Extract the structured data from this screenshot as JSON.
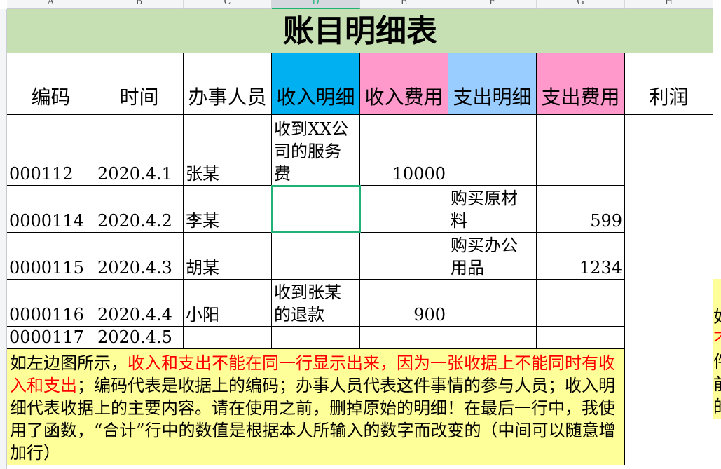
{
  "columns": [
    "A",
    "B",
    "C",
    "D",
    "E",
    "F",
    "G",
    "H"
  ],
  "selected_column": "D",
  "selected_cell": "D4",
  "title": "账目明细表",
  "headers": [
    {
      "label": "编码",
      "bg": "#ffffff"
    },
    {
      "label": "时间",
      "bg": "#ffffff"
    },
    {
      "label": "办事人员",
      "bg": "#ffffff"
    },
    {
      "label": "收入明细",
      "bg": "#00b0f0"
    },
    {
      "label": "收入费用",
      "bg": "#ff99cc"
    },
    {
      "label": "支出明细",
      "bg": "#99ccff"
    },
    {
      "label": "支出费用",
      "bg": "#ff99cc"
    },
    {
      "label": "利润",
      "bg": "#ffffff"
    }
  ],
  "rows": [
    [
      "000112",
      "2020.4.1",
      "张某",
      "收到XX公司的服务费",
      "10000",
      "",
      ""
    ],
    [
      "0000114",
      "2020.4.2",
      "李某",
      "",
      "",
      "购买原材料",
      "599"
    ],
    [
      "0000115",
      "2020.4.3",
      "胡某",
      "",
      "",
      "购买办公用品",
      "1234"
    ],
    [
      "0000116",
      "2020.4.4",
      "小阳",
      "收到张某的退款",
      "900",
      "",
      ""
    ],
    [
      "0000117",
      "2020.4.5",
      "",
      "",
      "",
      "",
      ""
    ]
  ],
  "note": {
    "part1": "如左边图所示，",
    "part2_red": "收入和支出不能在同一行显示出来，因为一张收据上不能同时有收入和支出",
    "part3": "；编码代表是收据上的编码；办事人员代表这件事情的参与人员；收入明细代表收据上的主要内容。请在使用之前，删掉原始的明细！在最后一行中，我使用了函数，“合计”行中的数值是根据本人所输入的数字而改变的（中间可以随意增加行）"
  },
  "side_note_chars": [
    "如",
    "不",
    "件",
    "前",
    "的"
  ],
  "colors": {
    "title_bg": "#c6e0b4",
    "note_bg": "#ffff99",
    "selection": "#1fb277",
    "red": "#ff0000"
  }
}
